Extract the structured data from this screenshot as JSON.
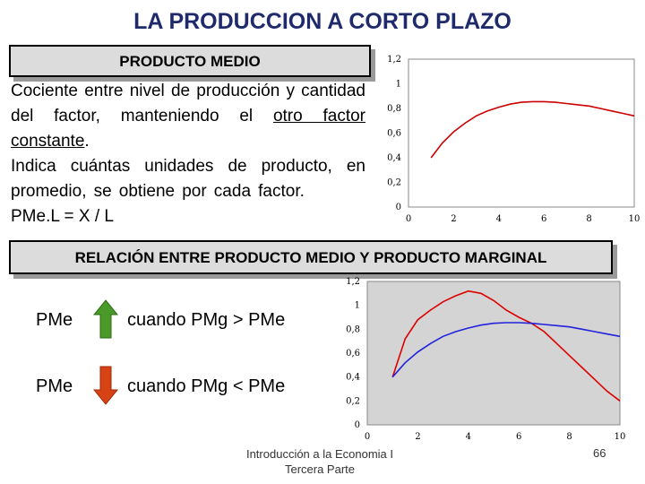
{
  "title": "LA PRODUCCION A CORTO PLAZO",
  "section1": {
    "heading": "PRODUCTO MEDIO",
    "definition": "Cociente entre nivel de producción y cantidad del factor, manteniendo el",
    "definition_underlined": "otro factor constante",
    "definition_end": ".",
    "explanation": "Indica cuántas unidades de producto, en promedio, se obtiene por cada factor.",
    "formula": "PMe.L = X / L"
  },
  "section2": {
    "heading": "RELACIÓN ENTRE PRODUCTO MEDIO Y PRODUCTO MARGINAL",
    "rows": [
      {
        "label": "PMe",
        "arrow": "arrow-up-icon",
        "color": "#4a9a2a",
        "condition": "cuando PMg > PMe"
      },
      {
        "label": "PMe",
        "arrow": "arrow-down-icon",
        "color": "#d84315",
        "condition": "cuando PMg < PMe"
      }
    ]
  },
  "footer": {
    "course": "Introducción a la Economia I",
    "part": "Tercera Parte",
    "page": "66"
  },
  "chart_data": [
    {
      "type": "line",
      "title": "",
      "xlabel": "",
      "ylabel": "",
      "xlim": [
        0,
        10
      ],
      "ylim": [
        0,
        1.2
      ],
      "x_ticks": [
        "0",
        "2",
        "4",
        "6",
        "8",
        "10"
      ],
      "y_ticks": [
        "0",
        "0,2",
        "0,4",
        "0,6",
        "0,8",
        "1",
        "1,2"
      ],
      "grid": false,
      "series": [
        {
          "color": "#cc0000",
          "x": [
            1,
            1.5,
            2,
            2.5,
            3,
            3.5,
            4,
            4.5,
            5,
            5.5,
            6,
            6.5,
            7,
            7.5,
            8,
            8.5,
            9,
            9.5,
            10
          ],
          "y": [
            0.4,
            0.52,
            0.61,
            0.68,
            0.74,
            0.78,
            0.81,
            0.835,
            0.85,
            0.855,
            0.855,
            0.85,
            0.84,
            0.83,
            0.82,
            0.8,
            0.78,
            0.76,
            0.74
          ]
        }
      ]
    },
    {
      "type": "line",
      "title": "",
      "xlabel": "",
      "ylabel": "",
      "xlim": [
        0,
        10
      ],
      "ylim": [
        0,
        1.2
      ],
      "x_ticks": [
        "0",
        "2",
        "4",
        "6",
        "8",
        "10"
      ],
      "y_ticks": [
        "0",
        "0,2",
        "0,4",
        "0,6",
        "0,8",
        "1",
        "1,2"
      ],
      "grid": false,
      "series": [
        {
          "color": "#dd0000",
          "x": [
            1,
            1.5,
            2,
            2.5,
            3,
            3.5,
            4,
            4.5,
            5,
            5.5,
            6,
            6.5,
            7,
            7.5,
            8,
            8.5,
            9,
            9.5,
            10
          ],
          "y": [
            0.4,
            0.72,
            0.88,
            0.96,
            1.03,
            1.08,
            1.12,
            1.1,
            1.04,
            0.96,
            0.9,
            0.85,
            0.78,
            0.68,
            0.58,
            0.48,
            0.38,
            0.28,
            0.2
          ]
        },
        {
          "color": "#2222dd",
          "x": [
            1,
            1.5,
            2,
            2.5,
            3,
            3.5,
            4,
            4.5,
            5,
            5.5,
            6,
            6.5,
            7,
            7.5,
            8,
            8.5,
            9,
            9.5,
            10
          ],
          "y": [
            0.4,
            0.52,
            0.61,
            0.68,
            0.74,
            0.78,
            0.81,
            0.835,
            0.85,
            0.855,
            0.855,
            0.85,
            0.84,
            0.83,
            0.82,
            0.8,
            0.78,
            0.76,
            0.74
          ]
        }
      ]
    }
  ]
}
